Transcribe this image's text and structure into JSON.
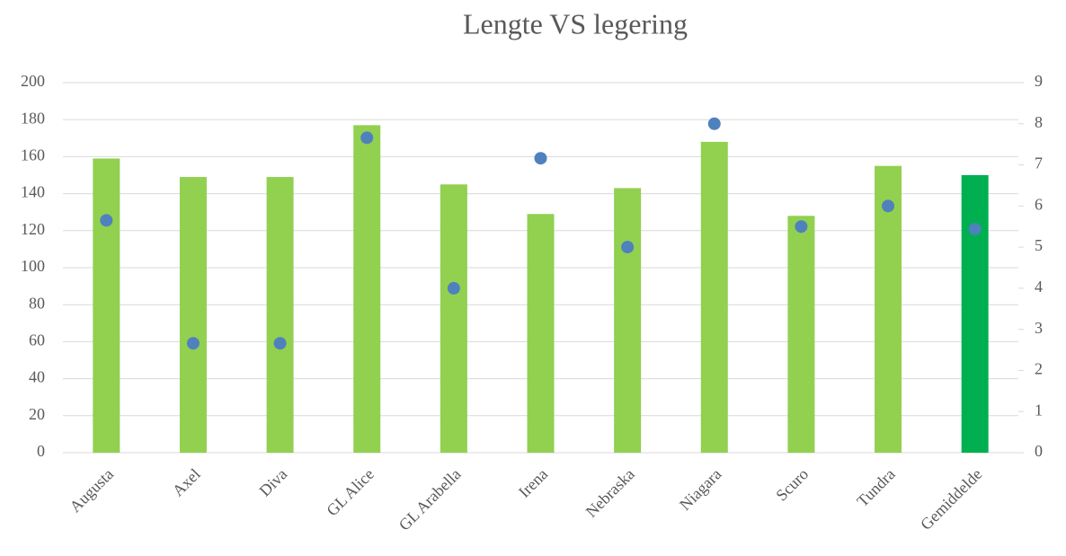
{
  "chart_data": {
    "type": "bar",
    "title": "Lengte VS legering",
    "categories": [
      "Augusta",
      "Axel",
      "Diva",
      "GL Alice",
      "GL Arabella",
      "Irena",
      "Nebraska",
      "Niagara",
      "Scuro",
      "Tundra",
      "Gemiddelde"
    ],
    "series": [
      {
        "type": "bar",
        "values": [
          159,
          149,
          149,
          177,
          145,
          129,
          143,
          168,
          128,
          155,
          150
        ],
        "colors": [
          "#92d050",
          "#92d050",
          "#92d050",
          "#92d050",
          "#92d050",
          "#92d050",
          "#92d050",
          "#92d050",
          "#92d050",
          "#92d050",
          "#00b050"
        ]
      },
      {
        "type": "scatter",
        "axis": "y2",
        "color": "#4f81bd",
        "values": [
          5.65,
          2.66,
          2.66,
          7.66,
          4.0,
          7.16,
          5.0,
          8.0,
          5.5,
          6.0,
          5.44
        ]
      }
    ],
    "ylim": [
      0,
      200
    ],
    "yticks": [
      0,
      20,
      40,
      60,
      80,
      100,
      120,
      140,
      160,
      180,
      200
    ],
    "y2lim": [
      0,
      9
    ],
    "y2ticks": [
      0,
      1,
      2,
      3,
      4,
      5,
      6,
      7,
      8,
      9
    ],
    "grid": true
  }
}
